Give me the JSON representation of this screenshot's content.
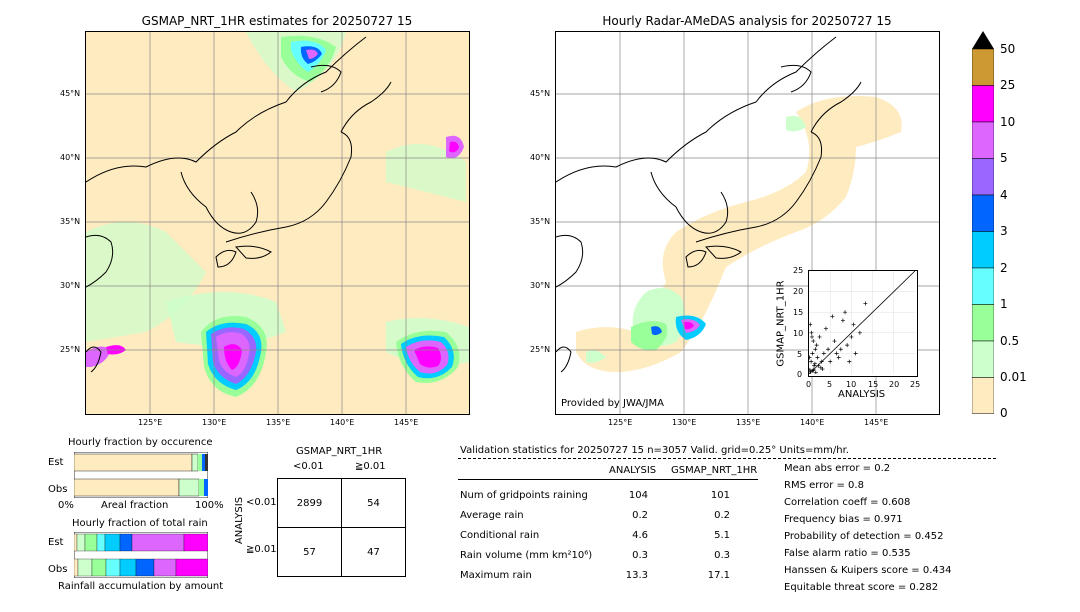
{
  "left_map": {
    "title": "GSMAP_NRT_1HR estimates for 20250727 15",
    "lat_labels": [
      "45°N",
      "40°N",
      "35°N",
      "30°N",
      "25°N"
    ],
    "lon_labels": [
      "125°E",
      "130°E",
      "135°E",
      "140°E",
      "145°E"
    ]
  },
  "right_map": {
    "title": "Hourly Radar-AMeDAS analysis for 20250727 15",
    "lat_labels": [
      "45°N",
      "40°N",
      "35°N",
      "30°N",
      "25°N"
    ],
    "lon_labels": [
      "125°E",
      "130°E",
      "135°E",
      "140°E",
      "145°E"
    ],
    "credit": "Provided by JWA/JMA"
  },
  "colorbar": {
    "labels": [
      "50",
      "25",
      "10",
      "5",
      "4",
      "3",
      "2",
      "1",
      "0.5",
      "0.01",
      "0"
    ],
    "colors": [
      "#cc9933",
      "#ff00ff",
      "#dd66ff",
      "#9966ff",
      "#0066ff",
      "#00ccff",
      "#66ffff",
      "#99ff99",
      "#ccffcc",
      "#ffebc0"
    ]
  },
  "scatter": {
    "xlabel": "ANALYSIS",
    "ylabel": "GSMAP_NRT_1HR",
    "ticks": [
      "0",
      "5",
      "10",
      "15",
      "20",
      "25"
    ]
  },
  "fraction_occurrence": {
    "title": "Hourly fraction by occurence",
    "rows": [
      "Est",
      "Obs"
    ],
    "xlabel_left": "0%",
    "xlabel_mid": "Areal fraction",
    "xlabel_right": "100%"
  },
  "fraction_total": {
    "title": "Hourly fraction of total rain",
    "rows": [
      "Est",
      "Obs"
    ],
    "footer": "Rainfall accumulation by amount"
  },
  "contingency": {
    "title": "GSMAP_NRT_1HR",
    "col_labels": [
      "<0.01",
      "≧0.01"
    ],
    "row_axis": "ANALYSIS",
    "row_labels": [
      "<0.01",
      "≧0.01"
    ],
    "cells": [
      [
        "2899",
        "54"
      ],
      [
        "57",
        "47"
      ]
    ]
  },
  "validation": {
    "header": "Validation statistics for 20250727 15  n=3057 Valid. grid=0.25° Units=mm/hr.",
    "col_analysis": "ANALYSIS",
    "col_gsmap": "GSMAP_NRT_1HR",
    "rows": [
      {
        "label": "Num of gridpoints raining",
        "a": "104",
        "g": "101"
      },
      {
        "label": "Average rain",
        "a": "0.2",
        "g": "0.2"
      },
      {
        "label": "Conditional rain",
        "a": "4.6",
        "g": "5.1"
      },
      {
        "label": "Rain volume (mm km²10⁶)",
        "a": "0.3",
        "g": "0.3"
      },
      {
        "label": "Maximum rain",
        "a": "13.3",
        "g": "17.1"
      }
    ],
    "scores": [
      "Mean abs error =    0.2",
      "RMS error =    0.8",
      "Correlation coeff =  0.608",
      "Frequency bias =  0.971",
      "Probability of detection =  0.452",
      "False alarm ratio =  0.535",
      "Hanssen & Kuipers score =  0.434",
      "Equitable threat score =  0.282"
    ]
  },
  "chart_data": {
    "type": "scatter",
    "title": "",
    "xlabel": "ANALYSIS",
    "ylabel": "GSMAP_NRT_1HR",
    "xlim": [
      0,
      25
    ],
    "ylim": [
      0,
      25
    ],
    "grid": true,
    "x": [
      0.2,
      0.5,
      0.8,
      1,
      1.2,
      1.5,
      2,
      2.5,
      3,
      0.3,
      0.6,
      1.1,
      1.8,
      2.2,
      3.5,
      4,
      4.5,
      5,
      6,
      7,
      8,
      9,
      10,
      11,
      12,
      13.3,
      0.4,
      0.9,
      1.4,
      2.8,
      5.5,
      7.5,
      9.5,
      10.5,
      0.1,
      0.7,
      1.6,
      3.2,
      6.5,
      8.5
    ],
    "y": [
      1,
      3,
      5,
      8,
      2,
      6,
      4,
      9,
      3,
      12,
      10,
      1,
      7,
      2,
      5,
      11,
      6,
      3,
      8,
      4,
      13,
      7,
      9,
      5,
      10,
      17.1,
      0.5,
      0.8,
      2.5,
      1.5,
      14,
      6,
      3,
      12,
      4,
      9,
      0.3,
      1.2,
      5,
      15
    ]
  }
}
